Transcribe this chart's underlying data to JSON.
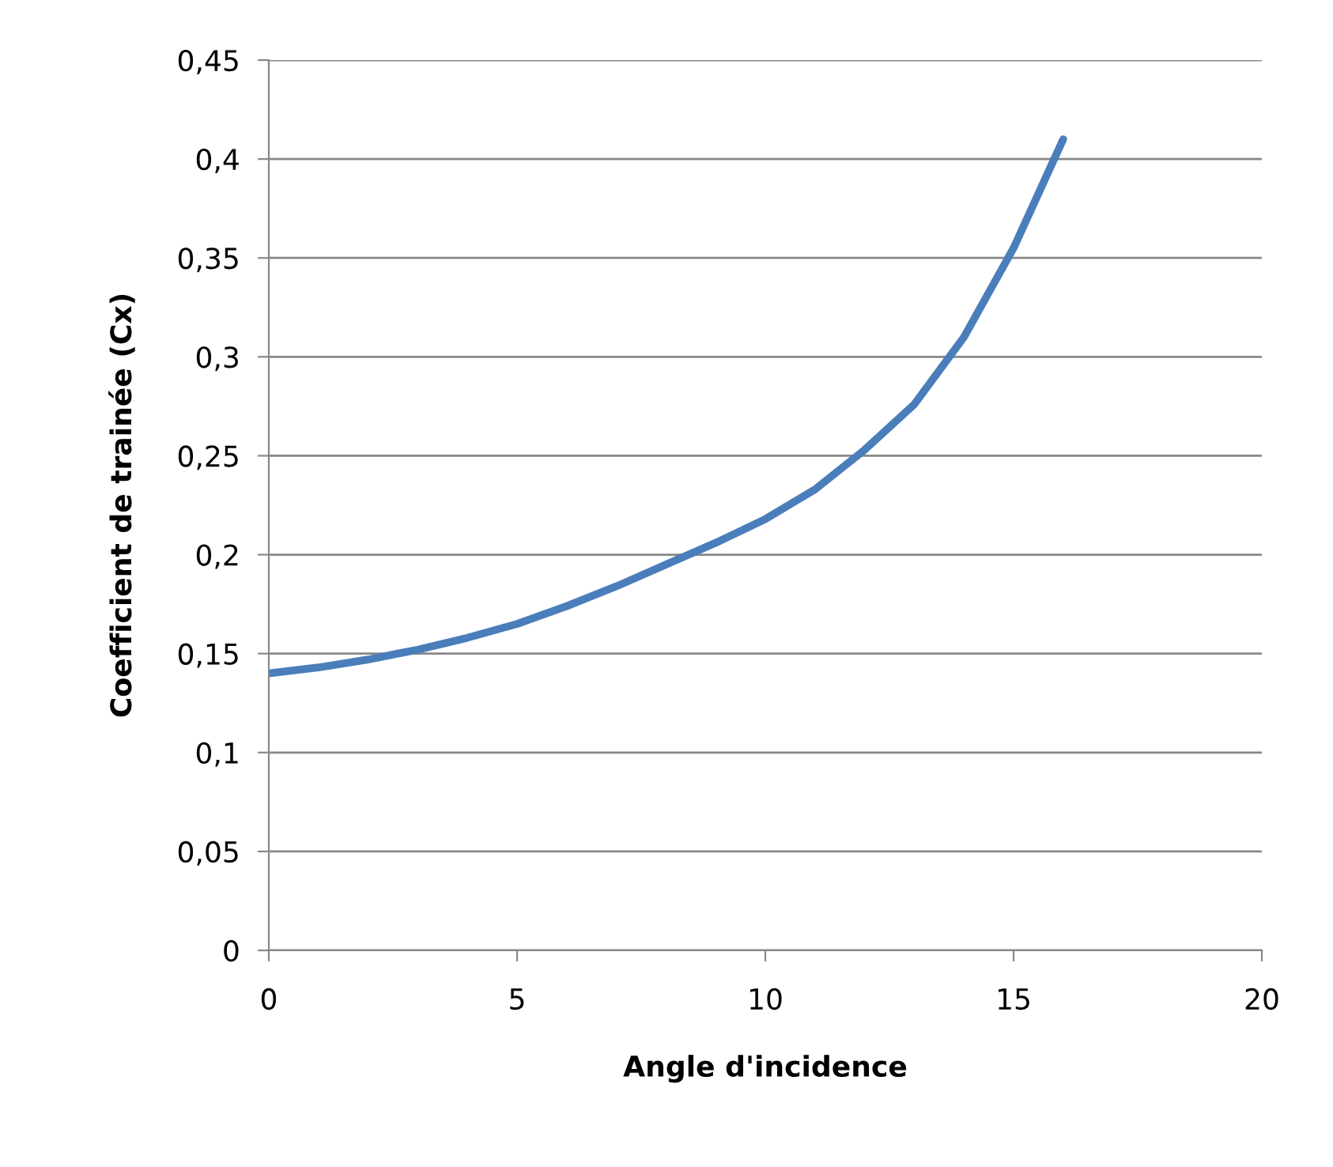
{
  "chart_data": {
    "type": "line",
    "xlabel": "Angle d'incidence",
    "ylabel": "Coefficient de trainée (Cx)",
    "x": [
      0,
      1,
      2,
      3,
      4,
      5,
      6,
      7,
      8,
      9,
      10,
      11,
      12,
      13,
      14,
      15,
      16
    ],
    "series": [
      {
        "color": "#4a7ebb",
        "values": [
          0.14,
          0.143,
          0.147,
          0.152,
          0.158,
          0.165,
          0.174,
          0.184,
          0.195,
          0.206,
          0.218,
          0.233,
          0.253,
          0.276,
          0.31,
          0.355,
          0.41
        ]
      }
    ],
    "xlim": [
      0,
      20
    ],
    "xticks": [
      0,
      5,
      10,
      15,
      20
    ],
    "ylim": [
      0,
      0.45
    ],
    "yticks": [
      0,
      {
        "value": 0.05,
        "label": "0,05"
      },
      {
        "value": 0.1,
        "label": "0,1"
      },
      {
        "value": 0.15,
        "label": "0,15"
      },
      {
        "value": 0.2,
        "label": "0,2"
      },
      {
        "value": 0.25,
        "label": "0,25"
      },
      {
        "value": 0.3,
        "label": "0,3"
      },
      {
        "value": 0.35,
        "label": "0,35"
      },
      {
        "value": 0.4,
        "label": "0,4"
      },
      {
        "value": 0.45,
        "label": "0,45"
      }
    ],
    "grid": "y",
    "marker": "none",
    "line_style": "solid"
  }
}
